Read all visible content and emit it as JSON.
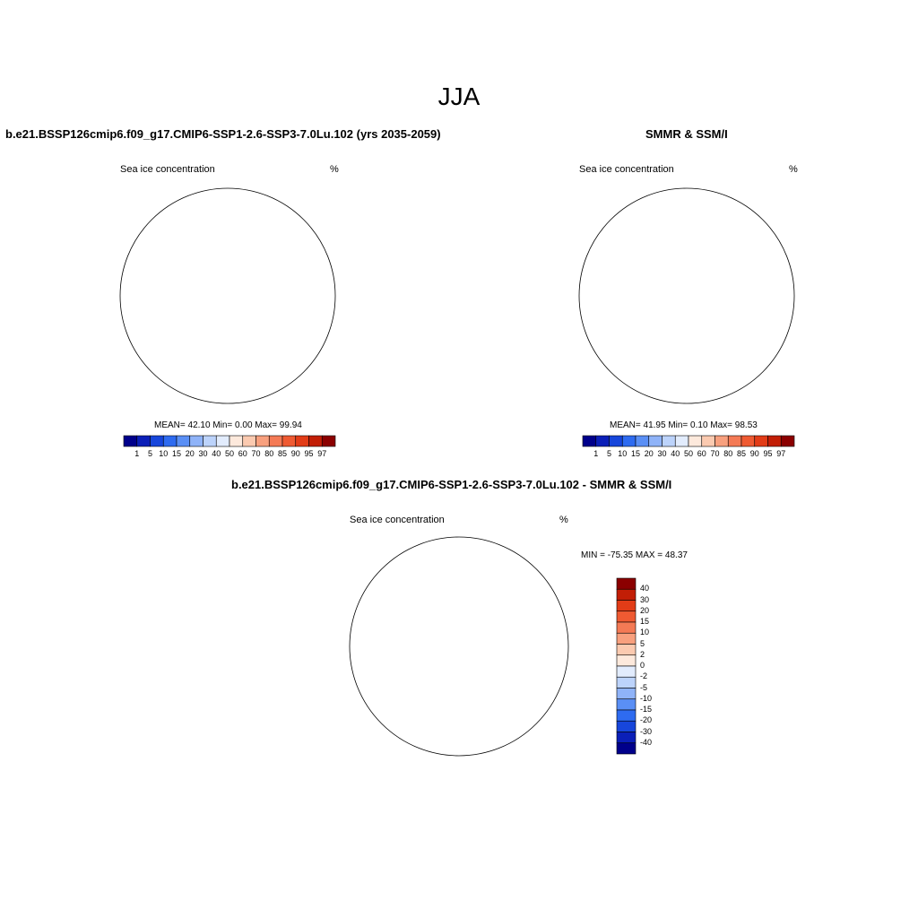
{
  "page": {
    "title": "JJA"
  },
  "colors": {
    "full_scale": [
      "#00008b",
      "#0b1fb8",
      "#1746db",
      "#2e6bf0",
      "#5a8ff5",
      "#8fb3f8",
      "#bcd3fb",
      "#e2ecfd",
      "#fde9dc",
      "#fbcab0",
      "#f8a07e",
      "#f47a55",
      "#ef5a32",
      "#e23c17",
      "#c21e06",
      "#8b0000"
    ],
    "diff_scale": [
      "#8b0000",
      "#c21e06",
      "#e23c17",
      "#ef5a32",
      "#f47a55",
      "#f8a07e",
      "#fbcab0",
      "#fde9dc",
      "#e2ecfd",
      "#bcd3fb",
      "#8fb3f8",
      "#5a8ff5",
      "#2e6bf0",
      "#1746db",
      "#0b1fb8",
      "#00008b"
    ],
    "land": "#ffffff",
    "coastline": "#000000"
  },
  "panels": [
    {
      "id": "model",
      "title": "b.e21.BSSP126cmip6.f09_g17.CMIP6-SSP1-2.6-SSP3-7.0Lu.102 (yrs 2035-2059)",
      "variable": "Sea ice concentration",
      "units": "%",
      "stats": "MEAN=  42.10  Min=   0.00  Max=  99.94",
      "colorbar_ticks": [
        "1",
        "5",
        "10",
        "15",
        "20",
        "30",
        "40",
        "50",
        "60",
        "70",
        "80",
        "85",
        "90",
        "95",
        "97"
      ]
    },
    {
      "id": "obs",
      "title": "SMMR & SSM/I",
      "variable": "Sea ice concentration",
      "units": "%",
      "stats": "MEAN=  41.95  Min=   0.10  Max=  98.53",
      "colorbar_ticks": [
        "1",
        "5",
        "10",
        "15",
        "20",
        "30",
        "40",
        "50",
        "60",
        "70",
        "80",
        "85",
        "90",
        "95",
        "97"
      ]
    },
    {
      "id": "diff",
      "title": "b.e21.BSSP126cmip6.f09_g17.CMIP6-SSP1-2.6-SSP3-7.0Lu.102 - SMMR & SSM/I",
      "variable": "Sea ice concentration",
      "units": "%",
      "stats": "MIN = -75.35 MAX =  48.37",
      "colorbar_ticks": [
        "40",
        "30",
        "20",
        "15",
        "10",
        "5",
        "2",
        "0",
        "-2",
        "-5",
        "-10",
        "-15",
        "-20",
        "-30",
        "-40"
      ]
    }
  ]
}
